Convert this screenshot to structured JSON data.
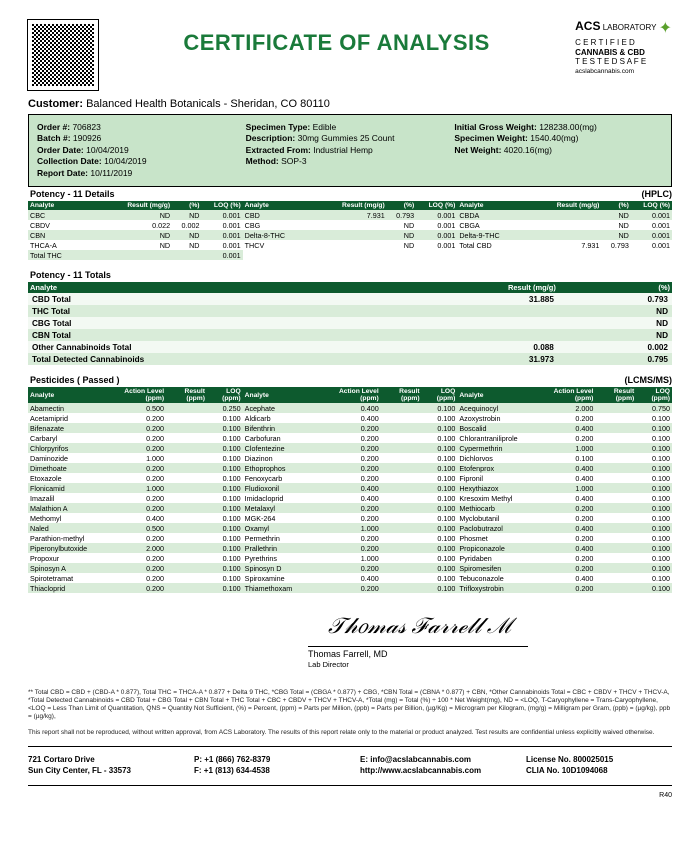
{
  "header": {
    "title": "CERTIFICATE OF ANALYSIS",
    "logo": {
      "name": "ACS",
      "sub": "LABORATORY",
      "l1": "C E R T I F I E D",
      "l2": "CANNABIS & CBD",
      "l3": "T E S T E D   S A F E",
      "site": "acslabcannabis.com"
    }
  },
  "customer": {
    "label": "Customer:",
    "value": "Balanced Health Botanicals  - Sheridan, CO 80110"
  },
  "order": {
    "col1": [
      {
        "k": "Order #:",
        "v": "706823"
      },
      {
        "k": "Batch #:",
        "v": "190926"
      },
      {
        "k": "Order Date:",
        "v": "10/04/2019"
      },
      {
        "k": "Collection Date:",
        "v": "10/04/2019"
      },
      {
        "k": "Report Date:",
        "v": "10/11/2019"
      }
    ],
    "col2": [
      {
        "k": "Specimen Type:",
        "v": "Edible"
      },
      {
        "k": "Description:",
        "v": "30mg Gummies 25 Count"
      },
      {
        "k": "Extracted From:",
        "v": "Industrial Hemp"
      },
      {
        "k": "Method:",
        "v": "SOP-3"
      }
    ],
    "col3": [
      {
        "k": "Initial Gross Weight:",
        "v": "128238.00(mg)"
      },
      {
        "k": "Specimen Weight:",
        "v": "1540.40(mg)"
      },
      {
        "k": "Net Weight:",
        "v": "4020.16(mg)"
      }
    ]
  },
  "potency": {
    "title": "Potency - 11 Details",
    "method": "(HPLC)",
    "headers": [
      "Analyte",
      "Result (mg/g)",
      "(%)",
      "LOQ (%)"
    ],
    "col1": [
      [
        "CBC",
        "ND",
        "ND",
        "0.001"
      ],
      [
        "CBDV",
        "0.022",
        "0.002",
        "0.001"
      ],
      [
        "CBN",
        "ND",
        "ND",
        "0.001"
      ],
      [
        "THCA-A",
        "ND",
        "ND",
        "0.001"
      ],
      [
        "Total THC",
        "",
        "",
        "0.001"
      ]
    ],
    "col2": [
      [
        "CBD",
        "7.931",
        "0.793",
        "0.001"
      ],
      [
        "CBG",
        "",
        "ND",
        "0.001"
      ],
      [
        "Delta-8-THC",
        "",
        "ND",
        "0.001"
      ],
      [
        "THCV",
        "",
        "ND",
        "0.001"
      ]
    ],
    "col3": [
      [
        "CBDA",
        "",
        "ND",
        "0.001"
      ],
      [
        "CBGA",
        "",
        "ND",
        "0.001"
      ],
      [
        "Delta-9-THC",
        "",
        "ND",
        "0.001"
      ],
      [
        "Total CBD",
        "7.931",
        "0.793",
        "0.001"
      ]
    ]
  },
  "totals": {
    "title": "Potency - 11 Totals",
    "headers": [
      "Analyte",
      "Result (mg/g)",
      "(%)"
    ],
    "rows": [
      [
        "CBD Total",
        "31.885",
        "0.793"
      ],
      [
        "THC Total",
        "",
        "ND"
      ],
      [
        "CBG Total",
        "",
        "ND"
      ],
      [
        "CBN Total",
        "",
        "ND"
      ],
      [
        "Other Cannabinoids Total",
        "0.088",
        "0.002"
      ],
      [
        "Total Detected Cannabinoids",
        "31.973",
        "0.795"
      ]
    ]
  },
  "pesticides": {
    "title": "Pesticides ( Passed )",
    "method": "(LCMS/MS)",
    "headers": [
      "Analyte",
      "Action Level (ppm)",
      "Result (ppm)",
      "LOQ (ppm)"
    ],
    "col1": [
      [
        "Abamectin",
        "0.500",
        "<LOQ",
        "0.250"
      ],
      [
        "Acetamiprid",
        "0.200",
        "<LOQ",
        "0.100"
      ],
      [
        "Bifenazate",
        "0.200",
        "<LOQ",
        "0.100"
      ],
      [
        "Carbaryl",
        "0.200",
        "<LOQ",
        "0.100"
      ],
      [
        "Chlorpyrifos",
        "0.200",
        "<LOQ",
        "0.100"
      ],
      [
        "Daminozide",
        "1.000",
        "<LOQ",
        "0.100"
      ],
      [
        "Dimethoate",
        "0.200",
        "<LOQ",
        "0.100"
      ],
      [
        "Etoxazole",
        "0.200",
        "<LOQ",
        "0.100"
      ],
      [
        "Flonicamid",
        "1.000",
        "<LOQ",
        "0.100"
      ],
      [
        "Imazalil",
        "0.200",
        "<LOQ",
        "0.100"
      ],
      [
        "Malathion A",
        "0.200",
        "<LOQ",
        "0.100"
      ],
      [
        "Methomyl",
        "0.400",
        "<LOQ",
        "0.100"
      ],
      [
        "Naled",
        "0.500",
        "<LOQ",
        "0.100"
      ],
      [
        "Parathion-methyl",
        "0.200",
        "<LOQ",
        "0.100"
      ],
      [
        "Piperonylbutoxide",
        "2.000",
        "<LOQ",
        "0.100"
      ],
      [
        "Propoxur",
        "0.200",
        "<LOQ",
        "0.100"
      ],
      [
        "Spinosyn A",
        "0.200",
        "<LOQ",
        "0.100"
      ],
      [
        "Spirotetramat",
        "0.200",
        "<LOQ",
        "0.100"
      ],
      [
        "Thiacloprid",
        "0.200",
        "<LOQ",
        "0.100"
      ]
    ],
    "col2": [
      [
        "Acephate",
        "0.400",
        "<LOQ",
        "0.100"
      ],
      [
        "Aldicarb",
        "0.400",
        "<LOQ",
        "0.100"
      ],
      [
        "Bifenthrin",
        "0.200",
        "<LOQ",
        "0.100"
      ],
      [
        "Carbofuran",
        "0.200",
        "<LOQ",
        "0.100"
      ],
      [
        "Clofentezine",
        "0.200",
        "<LOQ",
        "0.100"
      ],
      [
        "Diazinon",
        "0.200",
        "<LOQ",
        "0.100"
      ],
      [
        "Ethoprophos",
        "0.200",
        "<LOQ",
        "0.100"
      ],
      [
        "Fenoxycarb",
        "0.200",
        "<LOQ",
        "0.100"
      ],
      [
        "Fludioxonil",
        "0.400",
        "<LOQ",
        "0.100"
      ],
      [
        "Imidacloprid",
        "0.400",
        "<LOQ",
        "0.100"
      ],
      [
        "Metalaxyl",
        "0.200",
        "<LOQ",
        "0.100"
      ],
      [
        "MGK-264",
        "0.200",
        "<LOQ",
        "0.100"
      ],
      [
        "Oxamyl",
        "1.000",
        "<LOQ",
        "0.100"
      ],
      [
        "Permethrin",
        "0.200",
        "<LOQ",
        "0.100"
      ],
      [
        "Prallethrin",
        "0.200",
        "<LOQ",
        "0.100"
      ],
      [
        "Pyrethrins",
        "1.000",
        "<LOQ",
        "0.100"
      ],
      [
        "Spinosyn D",
        "0.200",
        "<LOQ",
        "0.100"
      ],
      [
        "Spiroxamine",
        "0.400",
        "<LOQ",
        "0.100"
      ],
      [
        "Thiamethoxam",
        "0.200",
        "<LOQ",
        "0.100"
      ]
    ],
    "col3": [
      [
        "Acequinocyl",
        "2.000",
        "<LOQ",
        "0.750"
      ],
      [
        "Azoxystrobin",
        "0.200",
        "<LOQ",
        "0.100"
      ],
      [
        "Boscalid",
        "0.400",
        "<LOQ",
        "0.100"
      ],
      [
        "Chlorantraniliprole",
        "0.200",
        "<LOQ",
        "0.100"
      ],
      [
        "Cypermethrin",
        "1.000",
        "<LOQ",
        "0.100"
      ],
      [
        "Dichlorvos",
        "0.100",
        "<LOQ",
        "0.100"
      ],
      [
        "Etofenprox",
        "0.400",
        "<LOQ",
        "0.100"
      ],
      [
        "Fipronil",
        "0.400",
        "<LOQ",
        "0.100"
      ],
      [
        "Hexythiazox",
        "1.000",
        "<LOQ",
        "0.100"
      ],
      [
        "Kresoxim Methyl",
        "0.400",
        "<LOQ",
        "0.100"
      ],
      [
        "Methiocarb",
        "0.200",
        "<LOQ",
        "0.100"
      ],
      [
        "Myclobutanil",
        "0.200",
        "<LOQ",
        "0.100"
      ],
      [
        "Paclobutrazol",
        "0.400",
        "<LOQ",
        "0.100"
      ],
      [
        "Phosmet",
        "0.200",
        "<LOQ",
        "0.100"
      ],
      [
        "Propiconazole",
        "0.400",
        "<LOQ",
        "0.100"
      ],
      [
        "Pyridaben",
        "0.200",
        "<LOQ",
        "0.100"
      ],
      [
        "Spiromesifen",
        "0.200",
        "<LOQ",
        "0.100"
      ],
      [
        "Tebuconazole",
        "0.400",
        "<LOQ",
        "0.100"
      ],
      [
        "Trifloxystrobin",
        "0.200",
        "<LOQ",
        "0.100"
      ]
    ]
  },
  "sig": {
    "name": "Thomas Farrell, MD",
    "role": "Lab Director"
  },
  "foot1": "** Total CBD = CBD + (CBD-A * 0.877), Total THC = THCA-A * 0.877 + Delta 9 THC, *CBG Total = (CBGA * 0.877) + CBG, *CBN Total = (CBNA * 0.877) + CBN, *Other Cannabinoids Total = CBC + CBDV + THCV + THCV-A, *Total Detected Cannabinoids = CBD Total + CBG Total + CBN Total + THC Total + CBC + CBDV + THCV + THCV-A, *Total (mg) = Total (%) ÷ 100 * Net Weight(mg), ND = <LOQ, T-Caryophyllene = Trans-Caryophyllene, <LOQ = Less Than Limit of Quantitation, QNS = Quantity Not Sufficient, (%) = Percent, (ppm) = Parts per Million, (ppb) = Parts per Billion, (µg/Kg) = Microgram per Kilogram, (mg/g) = Milligram per Gram, (ppb) = (µg/kg), ppb = (µg/kg),",
  "foot2": "This report shall not be reproduced, without written approval, from ACS Laboratory. The results of this report relate only to the material or product analyzed. Test results are confidential unless explicitly waived otherwise.",
  "contact": {
    "addr1": "721 Cortaro Drive",
    "addr2": "Sun City Center, FL - 33573",
    "p": "P: +1 (866) 762-8379",
    "f": "F: +1 (813) 634-4538",
    "e": "E: info@acslabcannabis.com",
    "w": "http://www.acslabcannabis.com",
    "lic": "License No. 800025015",
    "clia": "CLIA No. 10D1094068"
  },
  "rnum": "R40"
}
